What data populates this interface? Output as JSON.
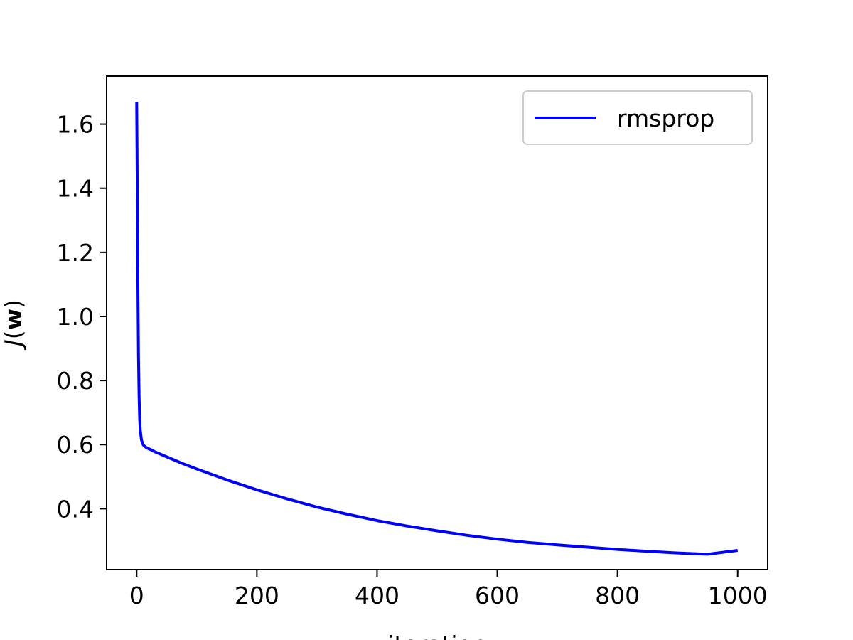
{
  "chart_data": {
    "type": "line",
    "title": "",
    "xlabel": "iteration",
    "ylabel": "J(w)",
    "xlim": [
      -50,
      1050
    ],
    "ylim": [
      0.21,
      1.75
    ],
    "xticks": [
      0,
      200,
      400,
      600,
      800,
      1000
    ],
    "xtick_labels": [
      "0",
      "200",
      "400",
      "600",
      "800",
      "1000"
    ],
    "yticks": [
      0.4,
      0.6,
      0.8,
      1.0,
      1.2,
      1.4,
      1.6
    ],
    "ytick_labels": [
      "0.4",
      "0.6",
      "0.8",
      "1.0",
      "1.2",
      "1.4",
      "1.6"
    ],
    "grid": false,
    "legend_position": "upper right",
    "series": [
      {
        "name": "rmsprop",
        "color": "#0000ff",
        "x": [
          0,
          1,
          2,
          3,
          4,
          5,
          6,
          8,
          10,
          12,
          15,
          18,
          20,
          25,
          30,
          50,
          75,
          100,
          150,
          200,
          250,
          300,
          350,
          400,
          450,
          500,
          550,
          600,
          650,
          700,
          750,
          800,
          850,
          900,
          950,
          1000
        ],
        "y": [
          1.67,
          1.4,
          1.1,
          0.88,
          0.75,
          0.68,
          0.645,
          0.615,
          0.602,
          0.597,
          0.592,
          0.589,
          0.587,
          0.583,
          0.578,
          0.562,
          0.542,
          0.524,
          0.49,
          0.459,
          0.431,
          0.405,
          0.383,
          0.363,
          0.346,
          0.331,
          0.317,
          0.305,
          0.295,
          0.287,
          0.28,
          0.273,
          0.267,
          0.262,
          0.258,
          0.27
        ]
      }
    ]
  }
}
